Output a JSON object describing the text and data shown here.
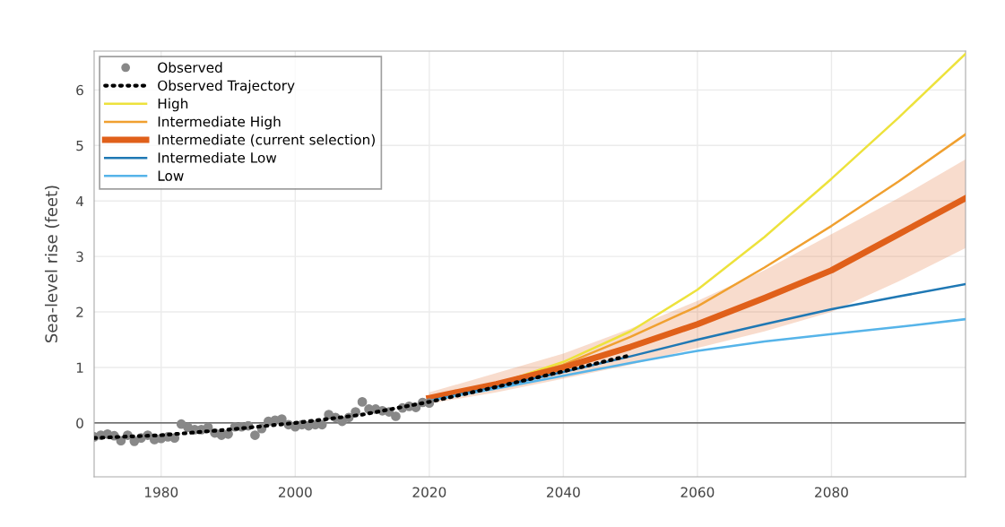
{
  "chart_data": {
    "type": "line",
    "ylabel": "Sea-level rise (feet)",
    "xlim": [
      1970,
      2100
    ],
    "ylim": [
      -0.97,
      6.7
    ],
    "xticks": [
      1980,
      2000,
      2020,
      2040,
      2060,
      2080
    ],
    "yticks": [
      0,
      1,
      2,
      3,
      4,
      5,
      6
    ],
    "grid": true,
    "legend": "top left",
    "ref_lines": [
      {
        "axis": "y",
        "value": 0,
        "color": "#444444"
      }
    ],
    "series": [
      {
        "name": "Observed",
        "type": "scatter",
        "marker": "circle",
        "color": "#888888",
        "x": [
          1970,
          1971,
          1972,
          1973,
          1974,
          1975,
          1976,
          1977,
          1978,
          1979,
          1980,
          1981,
          1982,
          1983,
          1984,
          1985,
          1986,
          1987,
          1988,
          1989,
          1990,
          1991,
          1992,
          1993,
          1994,
          1995,
          1996,
          1997,
          1998,
          1999,
          2000,
          2001,
          2002,
          2003,
          2004,
          2005,
          2006,
          2007,
          2008,
          2009,
          2010,
          2011,
          2012,
          2013,
          2014,
          2015,
          2016,
          2017,
          2018,
          2019,
          2020
        ],
        "values": [
          -0.25,
          -0.22,
          -0.2,
          -0.23,
          -0.32,
          -0.22,
          -0.33,
          -0.27,
          -0.22,
          -0.3,
          -0.28,
          -0.25,
          -0.27,
          -0.02,
          -0.08,
          -0.12,
          -0.12,
          -0.08,
          -0.18,
          -0.22,
          -0.2,
          -0.07,
          -0.07,
          -0.05,
          -0.22,
          -0.1,
          0.03,
          0.05,
          0.07,
          -0.03,
          -0.07,
          -0.03,
          -0.05,
          -0.03,
          -0.03,
          0.15,
          0.1,
          0.03,
          0.1,
          0.2,
          0.38,
          0.25,
          0.25,
          0.22,
          0.2,
          0.12,
          0.27,
          0.3,
          0.28,
          0.37,
          0.36
        ]
      },
      {
        "name": "Observed Trajectory",
        "line_style": "dotted",
        "color": "#000000",
        "x": [
          1970,
          1980,
          1990,
          2000,
          2010,
          2020,
          2030,
          2040,
          2050
        ],
        "values": [
          -0.27,
          -0.22,
          -0.12,
          0.0,
          0.15,
          0.38,
          0.65,
          0.93,
          1.22
        ]
      },
      {
        "name": "High",
        "color": "#ede23c",
        "x": [
          2020,
          2030,
          2040,
          2050,
          2060,
          2070,
          2080,
          2090,
          2100
        ],
        "values": [
          0.42,
          0.7,
          1.1,
          1.65,
          2.4,
          3.35,
          4.4,
          5.5,
          6.65
        ]
      },
      {
        "name": "Intermediate High",
        "color": "#f0a030",
        "x": [
          2020,
          2030,
          2040,
          2050,
          2060,
          2070,
          2080,
          2090,
          2100
        ],
        "values": [
          0.45,
          0.72,
          1.05,
          1.55,
          2.1,
          2.8,
          3.55,
          4.35,
          5.2
        ]
      },
      {
        "name": "Intermediate (current selection)",
        "color": "#e0601a",
        "x": [
          2020,
          2030,
          2040,
          2050,
          2060,
          2070,
          2080,
          2090,
          2100
        ],
        "values": [
          0.45,
          0.7,
          1.0,
          1.37,
          1.78,
          2.25,
          2.75,
          3.4,
          4.05
        ],
        "lower": [
          0.35,
          0.55,
          0.8,
          1.05,
          1.35,
          1.65,
          2.0,
          2.55,
          3.15
        ],
        "upper": [
          0.55,
          0.9,
          1.25,
          1.7,
          2.2,
          2.75,
          3.4,
          4.05,
          4.75
        ]
      },
      {
        "name": "Intermediate Low",
        "color": "#1f78b4",
        "x": [
          2020,
          2030,
          2040,
          2050,
          2060,
          2070,
          2080,
          2090,
          2100
        ],
        "values": [
          0.4,
          0.65,
          0.92,
          1.2,
          1.5,
          1.78,
          2.05,
          2.28,
          2.5
        ]
      },
      {
        "name": "Low",
        "color": "#56b4e9",
        "x": [
          2020,
          2030,
          2040,
          2050,
          2060,
          2070,
          2080,
          2090,
          2100
        ],
        "values": [
          0.4,
          0.62,
          0.85,
          1.08,
          1.3,
          1.47,
          1.6,
          1.73,
          1.87
        ]
      }
    ]
  }
}
